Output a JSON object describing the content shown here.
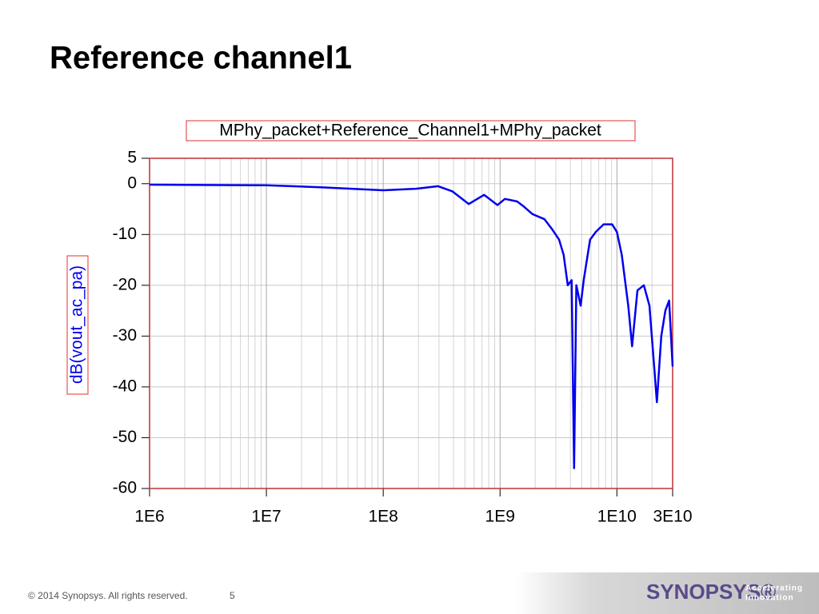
{
  "slide": {
    "title": "Reference channel1",
    "footer": "© 2014 Synopsys. All rights reserved.",
    "page": "5",
    "logo": "SYNOPSYS®",
    "tagline": [
      "Accelerating",
      "Innovation"
    ]
  },
  "chart_data": {
    "type": "line",
    "title": "MPhy_packet+Reference_Channel1+MPhy_packet",
    "ylabel": "dB(vout_ac_pa)",
    "color": "#0000ee",
    "xscale": "log",
    "grid": true,
    "minor_grid": true,
    "xlim": [
      1000000,
      30000000000
    ],
    "ylim": [
      -60,
      5
    ],
    "xticks": [
      {
        "value": 1000000,
        "label": "1E6"
      },
      {
        "value": 10000000,
        "label": "1E7"
      },
      {
        "value": 100000000,
        "label": "1E8"
      },
      {
        "value": 1000000000,
        "label": "1E9"
      },
      {
        "value": 10000000000,
        "label": "1E10"
      },
      {
        "value": 30000000000,
        "label": "3E10"
      }
    ],
    "yticks": [
      5,
      0,
      -10,
      -20,
      -30,
      -40,
      -50,
      -60
    ],
    "x": [
      1000000,
      10000000,
      29000000,
      100000000,
      190000000,
      295000000,
      390000000,
      540000000,
      730000000,
      950000000,
      1100000000,
      1400000000,
      1600000000,
      1900000000,
      2400000000,
      2800000000,
      3200000000,
      3500000000,
      3800000000,
      4100000000,
      4300000000,
      4500000000,
      4900000000,
      5200000000,
      5900000000,
      6600000000,
      7700000000,
      9100000000,
      10000000000,
      11000000000,
      12500000000,
      13500000000,
      15000000000,
      17000000000,
      19000000000,
      21000000000,
      22000000000,
      24000000000,
      26000000000,
      28000000000,
      30000000000
    ],
    "values": [
      -0.2,
      -0.3,
      -0.7,
      -1.3,
      -1.0,
      -0.5,
      -1.5,
      -4.0,
      -2.2,
      -4.2,
      -3.0,
      -3.5,
      -4.5,
      -6,
      -7,
      -9,
      -11,
      -14,
      -20,
      -19,
      -56,
      -20,
      -24,
      -19,
      -11,
      -9.5,
      -8,
      -8,
      -9.5,
      -14,
      -24,
      -32,
      -21,
      -20,
      -24,
      -37,
      -43,
      -30,
      -25,
      -23,
      -36
    ]
  }
}
